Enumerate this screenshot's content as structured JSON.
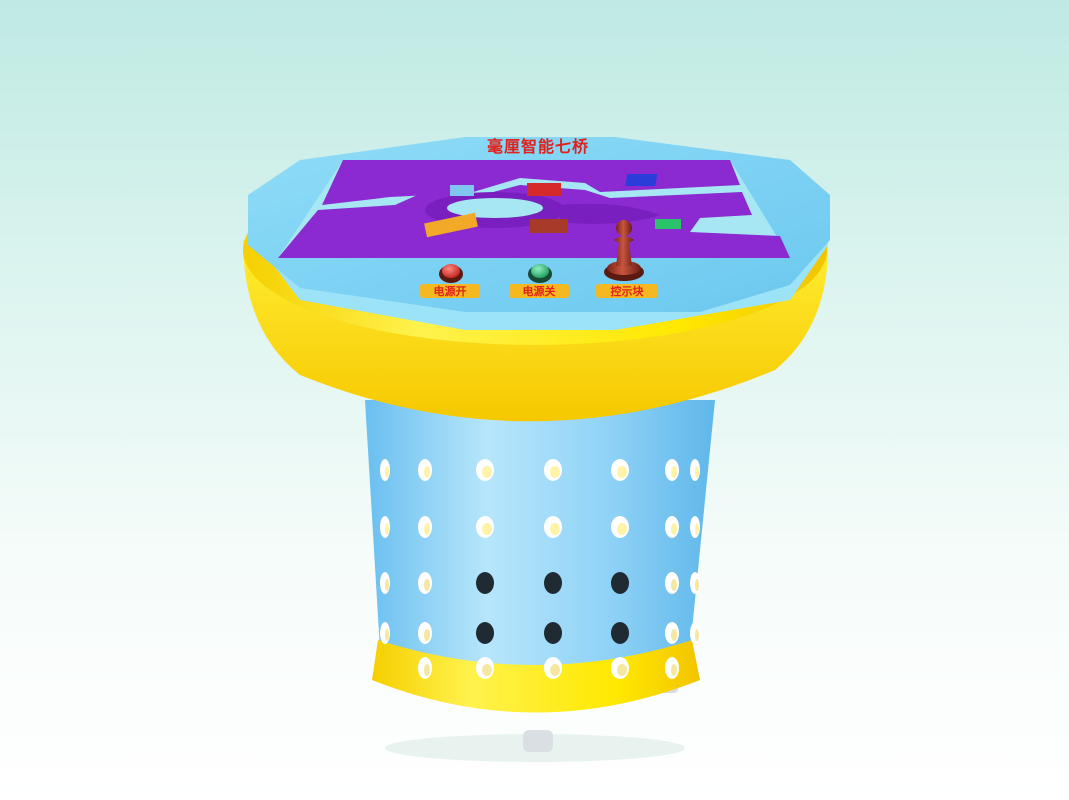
{
  "machine": {
    "title": "毫厘智能七桥",
    "buttons": [
      {
        "label": "电源开",
        "color": "#e8312a"
      },
      {
        "label": "电源关",
        "color": "#2ec07a"
      },
      {
        "label": "控示块",
        "color": "#b5412f"
      }
    ]
  },
  "colors": {
    "board": "#8a2ad0",
    "table_top": "#7fd3f5",
    "rim": "#ffe800",
    "base": "#8fd2f7"
  }
}
